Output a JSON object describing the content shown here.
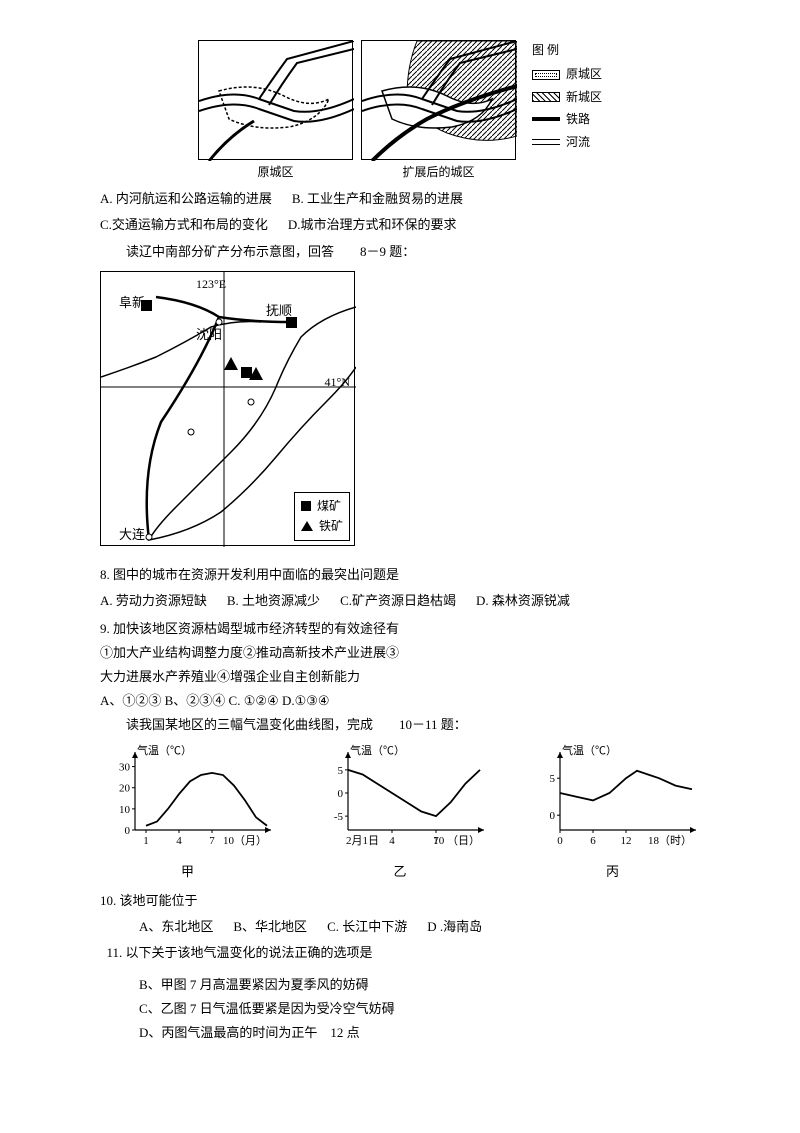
{
  "top_diagrams": {
    "left_caption": "原城区",
    "right_caption": "扩展后的城区",
    "legend_title": "图 例",
    "legend": [
      {
        "label": "原城区"
      },
      {
        "label": "新城区"
      },
      {
        "label": "铁路"
      },
      {
        "label": "河流"
      }
    ],
    "box_size": {
      "w": 155,
      "h": 120
    }
  },
  "q7_options": {
    "a": "A. 内河航运和公路运输的进展",
    "b": "B. 工业生产和金融贸易的进展",
    "c": "C.交通运输方式和布局的变化",
    "d": "D.城市治理方式和环保的要求"
  },
  "intro_8_9": "读辽中南部分矿产分布示意图，回答　　8－9 题：",
  "liaoning_map": {
    "cities": {
      "fuxin": "阜新",
      "shenyang": "沈阳",
      "fushun": "抚顺",
      "dalian": "大连"
    },
    "coords": {
      "lon": "123°E",
      "lat": "41°N"
    },
    "legend": {
      "coal": "煤矿",
      "iron": "铁矿"
    }
  },
  "q8": {
    "stem": "8. 图中的城市在资源开发利用中面临的最突出问题是",
    "a": "A. 劳动力资源短缺",
    "b": "B. 土地资源减少",
    "c": "C.矿产资源日趋枯竭",
    "d": "D. 森林资源锐减"
  },
  "q9": {
    "stem": "9. 加快该地区资源枯竭型城市经济转型的有效途径有",
    "line2": "①加大产业结构调整力度②推动高新技术产业进展③",
    "line3": "大力进展水产养殖业④增强企业自主创新能力",
    "opts": "A、①②③ B、②③④ C. ①②④ D.①③④"
  },
  "intro_10_11": "读我国某地区的三幅气温变化曲线图，完成　　10－11 题：",
  "charts": {
    "yaxis_label": "气温（℃）",
    "jia": {
      "name": "甲",
      "xlabel": "10（月）",
      "xticks": [
        "1",
        "4",
        "7"
      ],
      "yticks": [
        "0",
        "10",
        "20",
        "30"
      ],
      "ylim": [
        0,
        35
      ],
      "xlim": [
        0,
        12
      ],
      "values": [
        [
          1,
          2
        ],
        [
          2,
          4
        ],
        [
          3,
          10
        ],
        [
          4,
          17
        ],
        [
          5,
          23
        ],
        [
          6,
          26
        ],
        [
          7,
          27
        ],
        [
          8,
          26
        ],
        [
          9,
          21
        ],
        [
          10,
          14
        ],
        [
          11,
          6
        ],
        [
          12,
          2
        ]
      ],
      "line_color": "#000000"
    },
    "yi": {
      "name": "乙",
      "xlabel_prefix": "2月1日",
      "xlabel_suffix": "10 （日）",
      "xticks": [
        "4",
        "7"
      ],
      "yticks": [
        "-5",
        "0",
        "5"
      ],
      "ylim": [
        -8,
        8
      ],
      "xlim": [
        1,
        10
      ],
      "values": [
        [
          1,
          5
        ],
        [
          2,
          4
        ],
        [
          3,
          2
        ],
        [
          4,
          0
        ],
        [
          5,
          -2
        ],
        [
          6,
          -4
        ],
        [
          7,
          -5
        ],
        [
          8,
          -2
        ],
        [
          9,
          2
        ],
        [
          10,
          5
        ]
      ],
      "line_color": "#000000"
    },
    "bing": {
      "name": "丙",
      "xlabel": "18（时）",
      "xticks": [
        "0",
        "6",
        "12"
      ],
      "yticks": [
        "0",
        "5"
      ],
      "ylim": [
        -2,
        8
      ],
      "xlim": [
        0,
        24
      ],
      "values": [
        [
          0,
          3
        ],
        [
          3,
          2.5
        ],
        [
          6,
          2
        ],
        [
          9,
          3
        ],
        [
          12,
          5
        ],
        [
          14,
          6
        ],
        [
          16,
          5.5
        ],
        [
          18,
          5
        ],
        [
          21,
          4
        ],
        [
          24,
          3.5
        ]
      ],
      "line_color": "#000000"
    }
  },
  "q10": {
    "stem": "10. 该地可能位于",
    "a": "A、东北地区",
    "b": "B、华北地区",
    "c": "C. 长江中下游",
    "d": "D .海南岛"
  },
  "q11": {
    "stem": "11. 以下关于该地气温变化的说法正确的选项是",
    "b": "B、甲图 7 月高温要紧因为夏季风的妨碍",
    "c": "C、乙图 7 日气温低要紧是因为受冷空气妨碍",
    "d": "D、丙图气温最高的时间为正午　12 点"
  }
}
